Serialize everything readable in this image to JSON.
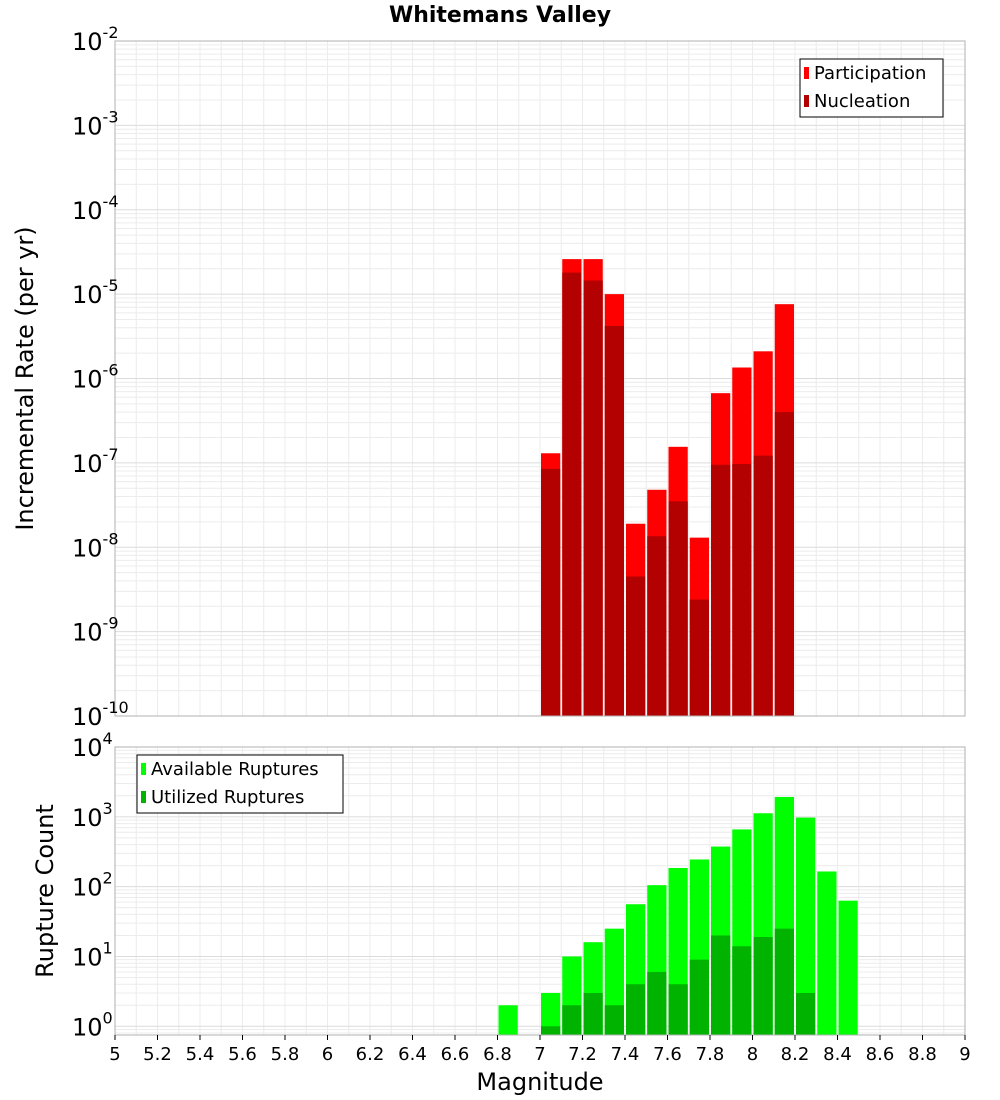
{
  "chart_data": [
    {
      "type": "bar",
      "title": "Whitemans Valley",
      "xlabel": "",
      "ylabel": "Incremental Rate (per yr)",
      "yscale": "log",
      "ylim": [
        1e-10,
        0.01
      ],
      "xlim": [
        5,
        9
      ],
      "grid": true,
      "legend_placement": "top-right",
      "ytick_exponents": [
        "-10",
        "-9",
        "-8",
        "-7",
        "-6",
        "-5",
        "-4",
        "-3",
        "-2"
      ],
      "ytick_base": "10",
      "bar_width": 0.1,
      "series": [
        {
          "name": "Participation",
          "color": "#ff0000",
          "x": [
            7.05,
            7.15,
            7.25,
            7.35,
            7.45,
            7.55,
            7.65,
            7.75,
            7.85,
            7.95,
            8.05,
            8.15
          ],
          "values": [
            1.3e-07,
            2.6e-05,
            2.6e-05,
            1e-05,
            1.9e-08,
            4.8e-08,
            1.55e-07,
            1.3e-08,
            6.7e-07,
            1.35e-06,
            2.1e-06,
            7.6e-06
          ]
        },
        {
          "name": "Nucleation",
          "color": "#b30000",
          "x": [
            7.05,
            7.15,
            7.25,
            7.35,
            7.45,
            7.55,
            7.65,
            7.75,
            7.85,
            7.95,
            8.05,
            8.15
          ],
          "values": [
            8.5e-08,
            1.8e-05,
            1.45e-05,
            4.2e-06,
            4.5e-09,
            1.35e-08,
            3.5e-08,
            2.4e-09,
            9.5e-08,
            9.7e-08,
            1.22e-07,
            4e-07
          ]
        }
      ]
    },
    {
      "type": "bar",
      "title": "",
      "xlabel": "Magnitude",
      "ylabel": "Rupture Count",
      "yscale": "log",
      "ylim": [
        0.75,
        10000
      ],
      "xlim": [
        5,
        9
      ],
      "grid": true,
      "legend_placement": "top-left",
      "ytick_exponents": [
        "0",
        "1",
        "2",
        "3",
        "4"
      ],
      "ytick_base": "10",
      "xticks": [
        "5",
        "5.2",
        "5.4",
        "5.6",
        "5.8",
        "6",
        "6.2",
        "6.4",
        "6.6",
        "6.8",
        "7",
        "7.2",
        "7.4",
        "7.6",
        "7.8",
        "8",
        "8.2",
        "8.4",
        "8.6",
        "8.8",
        "9"
      ],
      "bar_width": 0.1,
      "series": [
        {
          "name": "Available Ruptures",
          "color": "#00ff00",
          "x": [
            6.85,
            7.05,
            7.15,
            7.25,
            7.35,
            7.45,
            7.55,
            7.65,
            7.75,
            7.85,
            7.95,
            8.05,
            8.15,
            8.25,
            8.35,
            8.45
          ],
          "values": [
            2,
            3,
            10,
            16,
            25,
            56,
            105,
            185,
            245,
            375,
            660,
            1125,
            1925,
            975,
            165,
            63
          ]
        },
        {
          "name": "Utilized Ruptures",
          "color": "#00b300",
          "x": [
            7.05,
            7.15,
            7.25,
            7.35,
            7.45,
            7.55,
            7.65,
            7.75,
            7.85,
            7.95,
            8.05,
            8.15,
            8.25
          ],
          "values": [
            1,
            2,
            3,
            2,
            4,
            6,
            4,
            9,
            20,
            14,
            19,
            25,
            3
          ]
        }
      ]
    }
  ]
}
